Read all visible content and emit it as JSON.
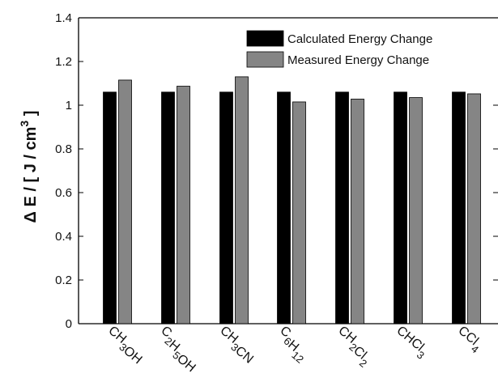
{
  "chart_data": {
    "type": "bar",
    "title": "",
    "xlabel": "",
    "ylabel": "Δ E / [ J / cm3 ]",
    "ylabel_parts": {
      "main": "Δ E / [ J / cm",
      "sup": "3",
      "close": " ]"
    },
    "ylim": [
      0,
      1.4
    ],
    "yticks": [
      0,
      0.2,
      0.4,
      0.6,
      0.8,
      1,
      1.2,
      1.4
    ],
    "ytick_labels": [
      "0",
      "0.2",
      "0.4",
      "0.6",
      "0.8",
      "1",
      "1.2",
      "1.4"
    ],
    "grid": false,
    "legend_position": "top-right",
    "categories": [
      "CH3OH",
      "C2H5OH",
      "CH3CN",
      "C6H12",
      "CH2Cl2",
      "CHCl3",
      "CCl4"
    ],
    "category_labels": [
      [
        {
          "t": "CH",
          "sub": false
        },
        {
          "t": "3",
          "sub": true
        },
        {
          "t": "OH",
          "sub": false
        }
      ],
      [
        {
          "t": "C",
          "sub": false
        },
        {
          "t": "2",
          "sub": true
        },
        {
          "t": "H",
          "sub": false
        },
        {
          "t": "5",
          "sub": true
        },
        {
          "t": "OH",
          "sub": false
        }
      ],
      [
        {
          "t": "CH",
          "sub": false
        },
        {
          "t": "3",
          "sub": true
        },
        {
          "t": "CN",
          "sub": false
        }
      ],
      [
        {
          "t": "C",
          "sub": false
        },
        {
          "t": "6",
          "sub": true
        },
        {
          "t": "H",
          "sub": false
        },
        {
          "t": "12",
          "sub": true
        }
      ],
      [
        {
          "t": "CH",
          "sub": false
        },
        {
          "t": "2",
          "sub": true
        },
        {
          "t": "Cl",
          "sub": false
        },
        {
          "t": "2",
          "sub": true
        }
      ],
      [
        {
          "t": "CHCl",
          "sub": false
        },
        {
          "t": "3",
          "sub": true
        }
      ],
      [
        {
          "t": "CCl",
          "sub": false
        },
        {
          "t": "4",
          "sub": true
        }
      ]
    ],
    "series": [
      {
        "name": "Calculated Energy Change",
        "color": "#000000",
        "values": [
          1.06,
          1.06,
          1.06,
          1.06,
          1.06,
          1.06,
          1.06
        ]
      },
      {
        "name": "Measured Energy Change",
        "color": "#858585",
        "values": [
          1.115,
          1.087,
          1.13,
          1.015,
          1.028,
          1.035,
          1.052
        ]
      }
    ]
  }
}
